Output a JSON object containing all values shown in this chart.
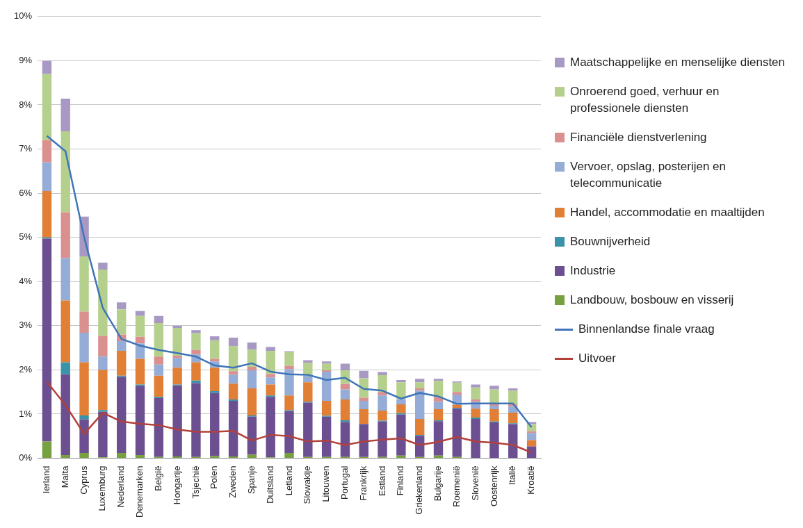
{
  "chart_data": {
    "type": "bar",
    "stacked": true,
    "legend": "right",
    "grid": "y",
    "marker": "none",
    "categories": [
      "Ierland",
      "Malta",
      "Cyprus",
      "Luxemburg",
      "Nederland",
      "Denemarken",
      "België",
      "Hongarije",
      "Tsjechië",
      "Polen",
      "Zweden",
      "Spanje",
      "Duitsland",
      "Letland",
      "Slowakije",
      "Litouwen",
      "Portugal",
      "Frankrijk",
      "Estland",
      "Finland",
      "Griekenland",
      "Bulgarije",
      "Roemenië",
      "Slovenië",
      "Oostenrijk",
      "Italië",
      "Kroatië"
    ],
    "ylim": [
      0,
      10
    ],
    "yticks": [
      {
        "value": 0,
        "label": "0%"
      },
      {
        "value": 1,
        "label": "1%"
      },
      {
        "value": 2,
        "label": "2%"
      },
      {
        "value": 3,
        "label": "3%"
      },
      {
        "value": 4,
        "label": "4%"
      },
      {
        "value": 5,
        "label": "5%"
      },
      {
        "value": 6,
        "label": "6%"
      },
      {
        "value": 7,
        "label": "7%"
      },
      {
        "value": 8,
        "label": "8%"
      },
      {
        "value": 9,
        "label": "9%"
      },
      {
        "value": 10,
        "label": "10%"
      }
    ],
    "series": [
      {
        "name": "Landbouw, bosbouw en visserij",
        "color": "#77a040",
        "values": [
          0.38,
          0.07,
          0.12,
          0.02,
          0.12,
          0.07,
          0.03,
          0.04,
          0.03,
          0.05,
          0.04,
          0.08,
          0.02,
          0.12,
          0.03,
          0.03,
          0.03,
          0.03,
          0.03,
          0.06,
          0.03,
          0.06,
          0.03,
          0.01,
          0.01,
          0.01,
          0.01
        ]
      },
      {
        "name": "Industrie",
        "color": "#6c4f90",
        "values": [
          4.59,
          1.83,
          0.76,
          1.03,
          1.72,
          1.57,
          1.33,
          1.61,
          1.67,
          1.43,
          1.26,
          0.86,
          1.37,
          0.95,
          1.23,
          0.91,
          0.79,
          0.74,
          0.8,
          0.93,
          0.48,
          0.78,
          1.09,
          0.88,
          0.8,
          0.76,
          0.26
        ]
      },
      {
        "name": "Bouwnijverheid",
        "color": "#3a93a8",
        "values": [
          0.03,
          0.27,
          0.09,
          0.04,
          0.03,
          0.03,
          0.03,
          0.02,
          0.06,
          0.04,
          0.03,
          0.03,
          0.03,
          0.02,
          0.02,
          0.02,
          0.04,
          0.01,
          0.02,
          0.03,
          0.02,
          0.02,
          0.02,
          0.03,
          0.02,
          0.02,
          null
        ]
      },
      {
        "name": "Handel, accommodatie en maaltijden",
        "color": "#e07f35",
        "values": [
          1.05,
          1.4,
          1.2,
          0.91,
          0.56,
          0.58,
          0.48,
          0.38,
          0.41,
          0.53,
          0.36,
          0.61,
          0.25,
          0.33,
          0.44,
          0.34,
          0.47,
          0.33,
          0.23,
          0.2,
          0.36,
          0.25,
          0.07,
          0.2,
          0.28,
          0.24,
          0.14
        ]
      },
      {
        "name": "Vervoer, opslag, posterijen en telecommunicatie",
        "color": "#94acd6",
        "values": [
          0.65,
          0.96,
          0.67,
          0.3,
          0.22,
          0.35,
          0.25,
          0.22,
          0.18,
          0.14,
          0.2,
          0.41,
          0.16,
          0.6,
          0.15,
          0.66,
          0.23,
          0.19,
          0.34,
          0.12,
          0.64,
          0.17,
          0.23,
          0.16,
          0.08,
          0.14,
          0.16
        ]
      },
      {
        "name": "Financiële dienstverlening",
        "color": "#d9908f",
        "values": [
          0.5,
          1.04,
          0.48,
          0.47,
          0.15,
          0.15,
          0.18,
          0.05,
          0.1,
          0.06,
          0.08,
          0.08,
          0.08,
          0.07,
          null,
          0.03,
          0.12,
          0.07,
          0.08,
          null,
          0.05,
          0.11,
          0.06,
          0.05,
          0.06,
          0.05,
          0.04
        ]
      },
      {
        "name": "Onroerend goed, verhuur en professionele diensten",
        "color": "#b5d08c",
        "values": [
          1.5,
          1.83,
          1.25,
          1.5,
          0.57,
          0.47,
          0.76,
          0.63,
          0.38,
          0.42,
          0.57,
          0.39,
          0.52,
          0.31,
          0.29,
          0.15,
          0.31,
          0.44,
          0.38,
          0.38,
          0.14,
          0.36,
          0.21,
          0.27,
          0.31,
          0.31,
          0.16
        ]
      },
      {
        "name": "Maatschappelijke en menselijke diensten",
        "color": "#a798c4",
        "values": [
          0.3,
          0.74,
          0.9,
          0.16,
          0.16,
          0.11,
          0.16,
          0.05,
          0.07,
          0.09,
          0.19,
          0.16,
          0.09,
          0.02,
          0.06,
          0.05,
          0.15,
          0.17,
          0.07,
          0.05,
          0.08,
          0.05,
          0.03,
          0.07,
          0.08,
          0.05,
          0.05
        ]
      },
      {
        "name": "Binnenlandse finale vraag",
        "type": "line",
        "color": "#3f75b8",
        "values": [
          7.3,
          6.95,
          5.0,
          3.4,
          2.7,
          2.55,
          2.45,
          2.38,
          2.3,
          2.1,
          2.05,
          2.15,
          1.96,
          1.9,
          1.89,
          1.77,
          1.82,
          1.57,
          1.53,
          1.35,
          1.48,
          1.4,
          1.23,
          1.24,
          1.24,
          1.24,
          0.7
        ]
      },
      {
        "name": "Uitvoer",
        "type": "line",
        "color": "#b2413b",
        "values": [
          1.73,
          1.2,
          0.55,
          1.03,
          0.83,
          0.78,
          0.75,
          0.65,
          0.6,
          0.6,
          0.62,
          0.4,
          0.53,
          0.5,
          0.38,
          0.4,
          0.3,
          0.38,
          0.42,
          0.45,
          0.3,
          0.37,
          0.48,
          0.38,
          0.35,
          0.3,
          0.13
        ]
      }
    ]
  }
}
